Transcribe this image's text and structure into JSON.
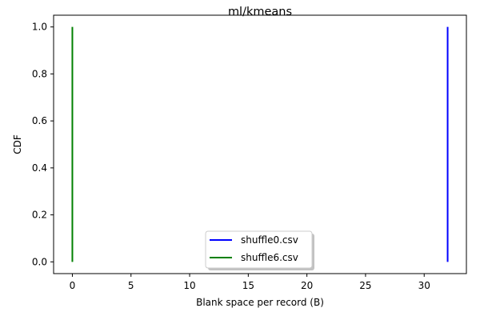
{
  "chart_data": {
    "type": "line",
    "title": "ml/kmeans",
    "xlabel": "Blank space per record (B)",
    "ylabel": "CDF",
    "xlim": [
      -1.6,
      33.6
    ],
    "ylim": [
      -0.05,
      1.05
    ],
    "xticks": [
      0,
      5,
      10,
      15,
      20,
      25,
      30
    ],
    "yticks": [
      0.0,
      0.2,
      0.4,
      0.6,
      0.8,
      1.0
    ],
    "xtick_labels": [
      "0",
      "5",
      "10",
      "15",
      "20",
      "25",
      "30"
    ],
    "ytick_labels": [
      "0.0",
      "0.2",
      "0.4",
      "0.6",
      "0.8",
      "1.0"
    ],
    "grid": false,
    "legend_position": "lower-center",
    "series": [
      {
        "name": "shuffle0.csv",
        "color": "#0000ff",
        "x": [
          32,
          32
        ],
        "y": [
          0.0,
          1.0
        ]
      },
      {
        "name": "shuffle6.csv",
        "color": "#008000",
        "x": [
          0,
          0
        ],
        "y": [
          0.0,
          1.0
        ]
      }
    ]
  }
}
